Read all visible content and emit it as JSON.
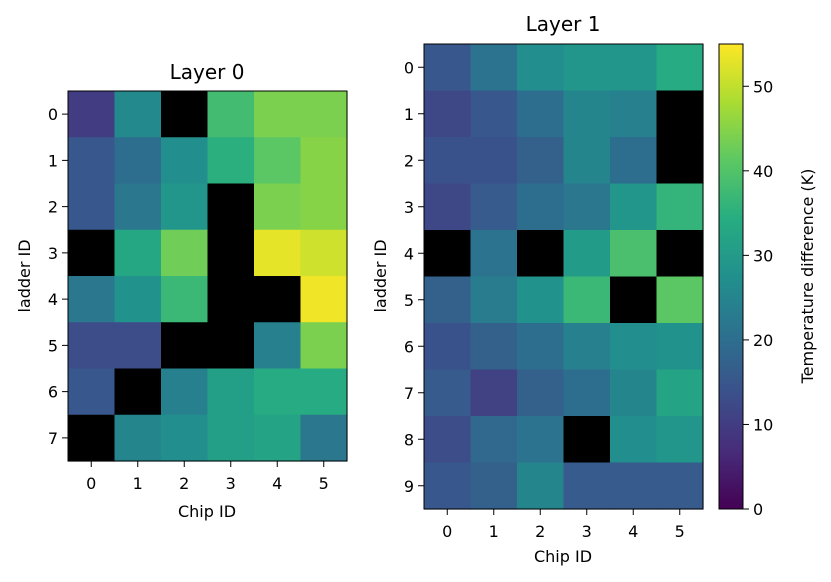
{
  "colorbar": {
    "label": "Temperature difference (K)",
    "min": 0,
    "max": 55,
    "ticks": [
      0,
      10,
      20,
      30,
      40,
      50
    ]
  },
  "chart_data": [
    {
      "type": "heatmap",
      "title": "Layer 0",
      "xlabel": "Chip ID",
      "ylabel": "ladder ID",
      "x": [
        0,
        1,
        2,
        3,
        4,
        5
      ],
      "y": [
        0,
        1,
        2,
        3,
        4,
        5,
        6,
        7
      ],
      "values": [
        [
          10,
          26,
          null,
          38,
          44,
          44
        ],
        [
          15,
          20,
          27,
          35,
          41,
          45
        ],
        [
          15,
          22,
          29,
          null,
          44,
          45
        ],
        [
          null,
          33,
          43,
          null,
          53,
          51
        ],
        [
          22,
          28,
          37,
          null,
          null,
          54
        ],
        [
          13,
          13,
          null,
          null,
          24,
          44
        ],
        [
          15,
          null,
          24,
          31,
          34,
          34
        ],
        [
          null,
          25,
          27,
          31,
          32,
          22
        ]
      ],
      "missing_color": "#000000"
    },
    {
      "type": "heatmap",
      "title": "Layer 1",
      "xlabel": "Chip ID",
      "ylabel": "ladder ID",
      "x": [
        0,
        1,
        2,
        3,
        4,
        5
      ],
      "y": [
        0,
        1,
        2,
        3,
        4,
        5,
        6,
        7,
        8,
        9
      ],
      "values": [
        [
          15,
          21,
          27,
          29,
          29,
          34
        ],
        [
          12,
          15,
          20,
          25,
          24,
          null
        ],
        [
          14,
          14,
          17,
          25,
          20,
          null
        ],
        [
          12,
          16,
          20,
          22,
          29,
          36
        ],
        [
          null,
          21,
          null,
          30,
          39,
          null
        ],
        [
          17,
          23,
          28,
          37,
          null,
          41
        ],
        [
          14,
          17,
          20,
          24,
          27,
          28
        ],
        [
          16,
          11,
          17,
          20,
          25,
          32
        ],
        [
          13,
          19,
          21,
          null,
          27,
          29
        ],
        [
          15,
          17,
          25,
          16,
          16,
          16
        ]
      ],
      "missing_color": "#000000"
    }
  ]
}
